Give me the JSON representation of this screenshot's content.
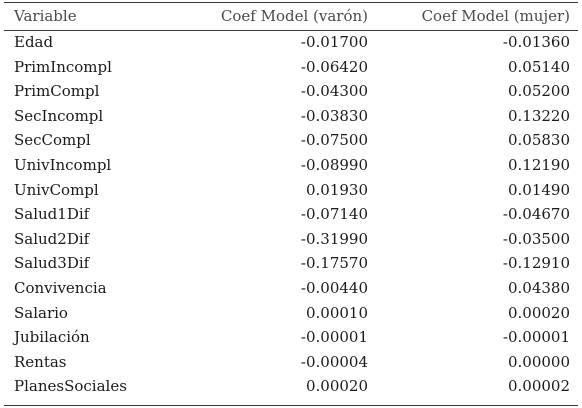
{
  "table": {
    "headers": [
      "Variable",
      "Coef Model (varón)",
      "Coef Model (mujer)"
    ],
    "rows": [
      [
        "Edad",
        "-0.01700",
        "-0.01360"
      ],
      [
        "PrimIncompl",
        "-0.06420",
        "0.05140"
      ],
      [
        "PrimCompl",
        "-0.04300",
        "0.05200"
      ],
      [
        "SecIncompl",
        "-0.03830",
        "0.13220"
      ],
      [
        "SecCompl",
        "-0.07500",
        "0.05830"
      ],
      [
        "UnivIncompl",
        "-0.08990",
        "0.12190"
      ],
      [
        "UnivCompl",
        "0.01930",
        "0.01490"
      ],
      [
        "Salud1Dif",
        "-0.07140",
        "-0.04670"
      ],
      [
        "Salud2Dif",
        "-0.31990",
        "-0.03500"
      ],
      [
        "Salud3Dif",
        "-0.17570",
        "-0.12910"
      ],
      [
        "Convivencia",
        "-0.00440",
        "0.04380"
      ],
      [
        "Salario",
        "0.00010",
        "0.00020"
      ],
      [
        "Jubilación",
        "-0.00001",
        "-0.00001"
      ],
      [
        "Rentas",
        "-0.00004",
        "0.00000"
      ],
      [
        "PlanesSociales",
        "0.00020",
        "0.00002"
      ]
    ]
  }
}
